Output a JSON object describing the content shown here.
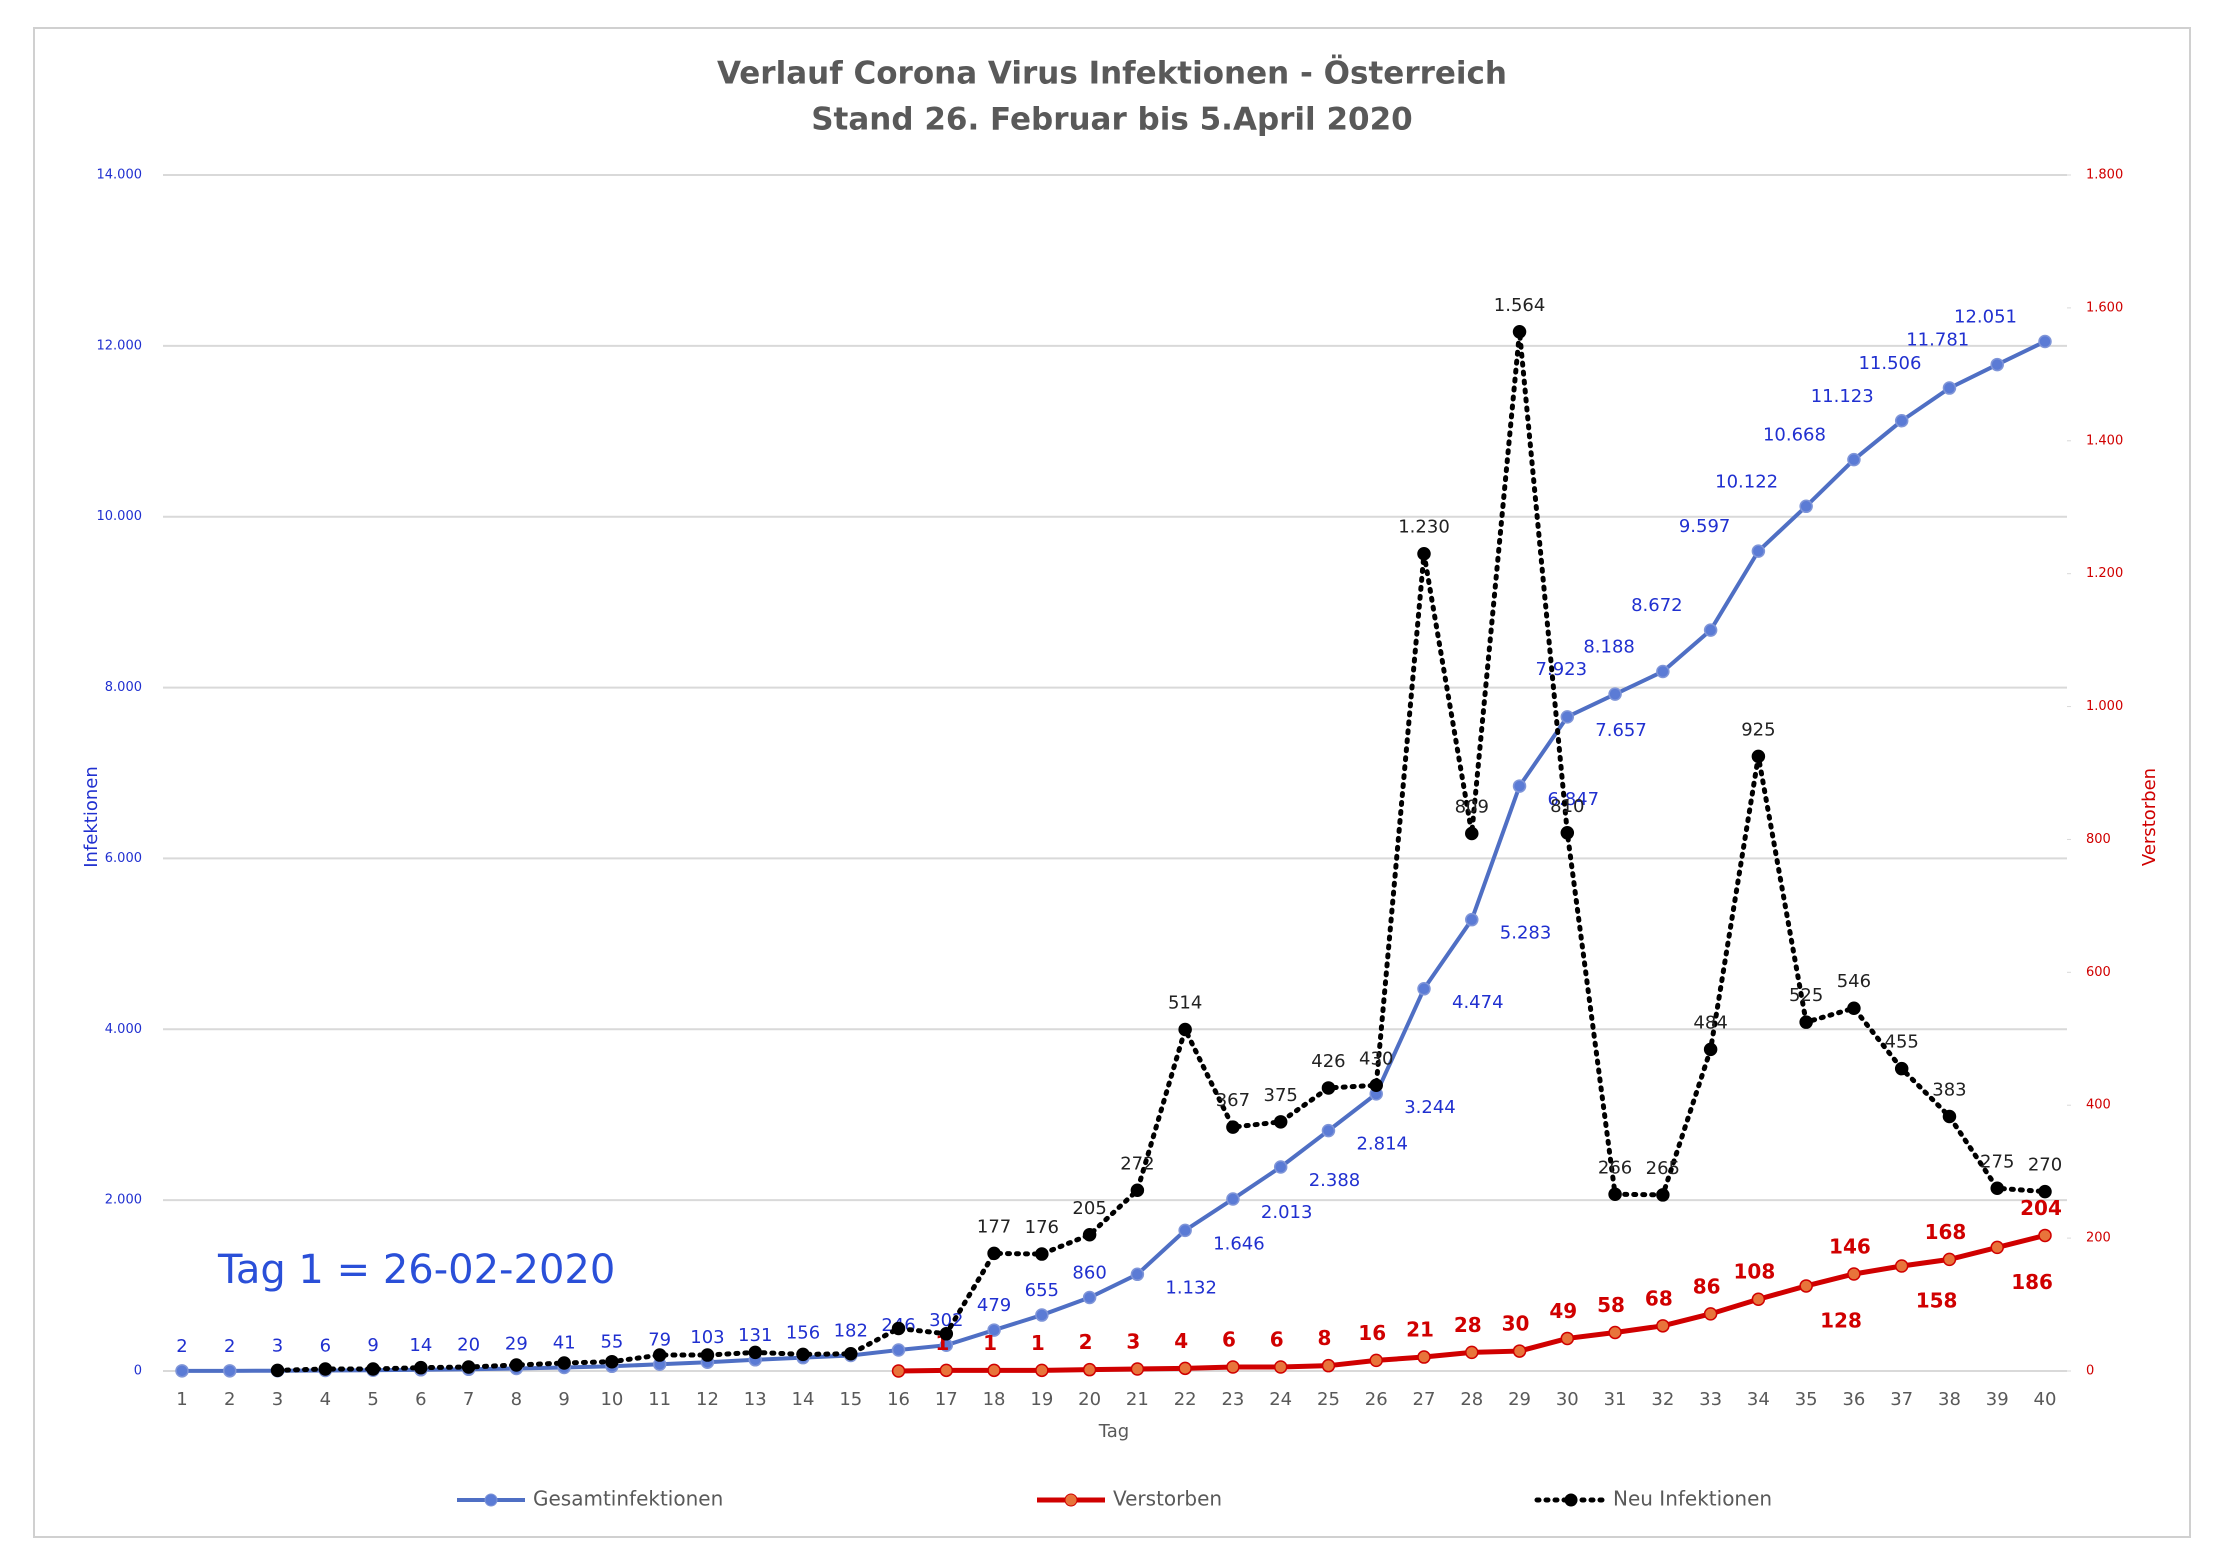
{
  "chart_data": {
    "type": "line",
    "title": "Verlauf Corona Virus Infektionen - Österreich",
    "subtitle": "Stand 26. Februar bis 5.April 2020",
    "x_label": "Tag",
    "y_label": "Infektionen",
    "y2_label": "Verstorben",
    "annotation": "Tag 1 = 26-02-2020",
    "categories": [
      1,
      2,
      3,
      4,
      5,
      6,
      7,
      8,
      9,
      10,
      11,
      12,
      13,
      14,
      15,
      16,
      17,
      18,
      19,
      20,
      21,
      22,
      23,
      24,
      25,
      26,
      27,
      28,
      29,
      30,
      31,
      32,
      33,
      34,
      35,
      36,
      37,
      38,
      39,
      40
    ],
    "ylim": [
      0,
      14000
    ],
    "yticks": [
      0,
      {
        "value": 2000,
        "label": "2.000"
      },
      {
        "value": 4000,
        "label": "4.000"
      },
      {
        "value": 6000,
        "label": "6.000"
      },
      {
        "value": 8000,
        "label": "8.000"
      },
      {
        "value": 10000,
        "label": "10.000"
      },
      {
        "value": 12000,
        "label": "12.000"
      },
      {
        "value": 14000,
        "label": "14.000"
      }
    ],
    "y2lim": [
      0,
      1800
    ],
    "y2ticks": [
      0,
      200,
      400,
      600,
      800,
      {
        "value": 1000,
        "label": "1.000"
      },
      {
        "value": 1200,
        "label": "1.200"
      },
      {
        "value": 1400,
        "label": "1.400"
      },
      {
        "value": 1600,
        "label": "1.600"
      },
      {
        "value": 1800,
        "label": "1.800"
      }
    ],
    "grid": true,
    "legend": "bottom",
    "series": [
      {
        "name": "Gesamtinfektionen",
        "color": "#4f6fc4",
        "line_style": "solid",
        "axis": "y",
        "values": [
          2,
          2,
          3,
          6,
          9,
          14,
          20,
          29,
          41,
          55,
          79,
          103,
          131,
          156,
          182,
          246,
          302,
          479,
          655,
          860,
          1132,
          1646,
          2013,
          2388,
          2814,
          3244,
          4474,
          5283,
          6847,
          7657,
          7923,
          8188,
          8672,
          9597,
          10122,
          10668,
          11123,
          11506,
          11781,
          12051
        ],
        "value_labels": [
          "2",
          "2",
          "3",
          "6",
          "9",
          "14",
          "20",
          "29",
          "41",
          "55",
          "79",
          "103",
          "131",
          "156",
          "182",
          "246",
          "302",
          "479",
          "655",
          "860",
          "1.132",
          "1.646",
          "2.013",
          "2.388",
          "2.814",
          "3.244",
          "4.474",
          "5.283",
          "6.847",
          "7.657",
          "7.923",
          "8.188",
          "8.672",
          "9.597",
          "10.122",
          "10.668",
          "11.123",
          "11.506",
          "11.781",
          "12.051"
        ]
      },
      {
        "name": "Verstorben",
        "color": "#d00000",
        "line_style": "solid",
        "axis": "y2",
        "values": [
          null,
          null,
          null,
          null,
          null,
          null,
          null,
          null,
          null,
          null,
          null,
          null,
          null,
          null,
          null,
          0,
          1,
          1,
          1,
          2,
          3,
          4,
          6,
          6,
          8,
          16,
          21,
          28,
          30,
          49,
          58,
          68,
          86,
          108,
          128,
          146,
          158,
          168,
          186,
          204
        ],
        "value_labels": [
          null,
          null,
          null,
          null,
          null,
          null,
          null,
          null,
          null,
          null,
          null,
          null,
          null,
          null,
          null,
          null,
          "1",
          "1",
          "1",
          "2",
          "3",
          "4",
          "6",
          "6",
          "8",
          "16",
          "21",
          "28",
          "30",
          "49",
          "58",
          "68",
          "86",
          "108",
          "128",
          "146",
          "158",
          "168",
          "186",
          "204"
        ]
      },
      {
        "name": "Neu Infektionen",
        "color": "#000000",
        "line_style": "dotted",
        "axis": "y2",
        "values": [
          null,
          null,
          1,
          3,
          3,
          5,
          6,
          9,
          12,
          14,
          24,
          24,
          28,
          25,
          26,
          64,
          56,
          177,
          176,
          205,
          272,
          514,
          367,
          375,
          426,
          430,
          1230,
          809,
          1564,
          810,
          266,
          265,
          484,
          925,
          525,
          546,
          455,
          383,
          275,
          270
        ],
        "value_labels": [
          null,
          null,
          null,
          null,
          null,
          null,
          null,
          null,
          null,
          null,
          null,
          null,
          null,
          null,
          null,
          null,
          null,
          "177",
          "176",
          "205",
          "272",
          "514",
          "367",
          "375",
          "426",
          "430",
          "1.230",
          "809",
          "1.564",
          "810",
          "266",
          "265",
          "484",
          "925",
          "525",
          "546",
          "455",
          "383",
          "275",
          "270"
        ]
      }
    ]
  }
}
